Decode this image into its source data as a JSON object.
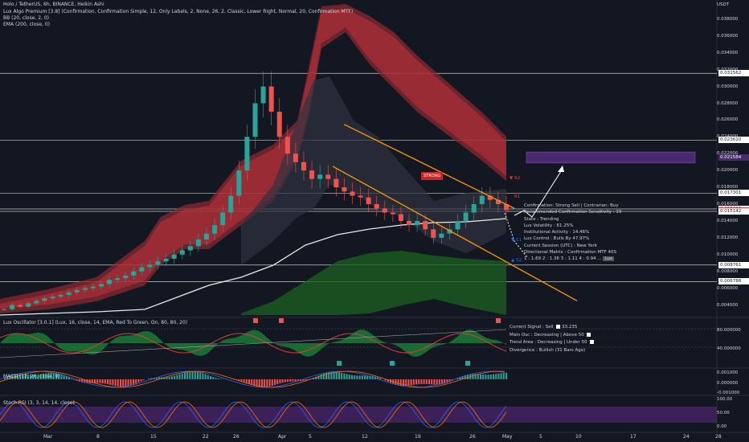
{
  "header": {
    "title": "Holo / TetherUS, 6h, BINANCE, Heikin Ashi",
    "lines": [
      "Lux Algo Premium [3.8] (Confirmation, Confirmation Simple, 12, Only Labels, 2, None, 26, 2, Classic, Lower Right, Normal, 20, Confirmation MTF)",
      "BB (20, close, 2, 0)",
      "EMA (200, close, 0)"
    ],
    "currency": "USDT"
  },
  "price_axis": [
    "0.038000",
    "0.036000",
    "0.034000",
    "0.032000",
    "0.030000",
    "0.028000",
    "0.026000",
    "0.024000",
    "0.022000",
    "0.020000",
    "0.018000",
    "0.016000",
    "0.014000",
    "0.012000",
    "0.010000",
    "0.008000",
    "0.006000",
    "0.004000"
  ],
  "price_highlights": [
    {
      "label": "0.031562",
      "bg": "#ffffff",
      "fg": "#131722"
    },
    {
      "label": "0.023610",
      "bg": "#ffffff",
      "fg": "#131722"
    },
    {
      "label": "0.021584",
      "bg": "#4a2a6e",
      "fg": "#ffffff"
    },
    {
      "label": "0.017301",
      "bg": "#ffffff",
      "fg": "#131722"
    },
    {
      "label": "0.015426",
      "bg": "#ffffff",
      "fg": "#131722"
    },
    {
      "label": "0.015275",
      "bg": "#f23645",
      "fg": "#ffffff"
    },
    {
      "label": "0.015142",
      "bg": "#ffffff",
      "fg": "#131722"
    },
    {
      "label": "0.008761",
      "bg": "#ffffff",
      "fg": "#131722"
    },
    {
      "label": "0.006788",
      "bg": "#ffffff",
      "fg": "#131722"
    }
  ],
  "time_axis": [
    "Mar",
    "8",
    "15",
    "22",
    "26",
    "Apr",
    "5",
    "12",
    "19",
    "26",
    "May",
    "5",
    "10",
    "17",
    "24",
    "28"
  ],
  "chart_labels": {
    "strong": "STRONG",
    "r2": "▼ R2",
    "r1": "R1",
    "s1": "▼ S1",
    "s2": "▲ S2"
  },
  "dashboard": {
    "lines": [
      "Confirmation: Strong Sell  |  Contrarian: Buy",
      "Recommended Confirmation Sensitivity : 19",
      "State : Trending",
      "Lux Volatility : 61.25%",
      "Institutional Activity : 14.46%",
      "Lux Control : Bulls By 47.97%",
      "Current Session (UTC) : New York",
      "Directional Matrix : Confirmation MTF",
      "1 : 1.69  2 : 1.36  3 : 1.11  4 : 0.94  ..."
    ],
    "tag": "Lux",
    "matrix_value": "40S"
  },
  "oscillator": {
    "legend": "Lux Oscillator [3.0.1] (Lux, 16, close, 14, EMA, Red To Green, On, 80, 80, 20)",
    "axis": [
      "80.000000",
      "40.000000"
    ],
    "table": [
      "Current Signal : Sell",
      "Main Osc : Decreasing   |   Above 50",
      "Trend Area : Decreasing   |   Under 50",
      "Divergence : Bullish  (31 Bars Ago)"
    ],
    "signal_value": "33.235"
  },
  "macd": {
    "legend": "MACD (12, 26, close, 9)",
    "axis": [
      "0.001000",
      "0.000000",
      "-0.001000"
    ]
  },
  "stoch": {
    "legend": "Stoch RSI (3, 3, 14, 14, close)",
    "axis": [
      "100.00",
      "50.00",
      "0.00"
    ]
  },
  "chart_data": {
    "type": "candlestick",
    "title": "Holo / TetherUS, 6h, BINANCE, Heikin Ashi",
    "ylim": [
      0.003,
      0.04
    ],
    "price_series_close": [
      0.0035,
      0.004,
      0.0038,
      0.0042,
      0.0045,
      0.0048,
      0.005,
      0.0052,
      0.0055,
      0.0058,
      0.006,
      0.0062,
      0.0065,
      0.007,
      0.0072,
      0.0075,
      0.008,
      0.0085,
      0.0088,
      0.0092,
      0.0095,
      0.01,
      0.0105,
      0.011,
      0.0118,
      0.0125,
      0.0135,
      0.015,
      0.017,
      0.02,
      0.024,
      0.028,
      0.03,
      0.027,
      0.024,
      0.022,
      0.021,
      0.02,
      0.019,
      0.0195,
      0.019,
      0.018,
      0.0175,
      0.017,
      0.0168,
      0.016,
      0.0155,
      0.015,
      0.0148,
      0.014,
      0.0135,
      0.014,
      0.013,
      0.012,
      0.0125,
      0.013,
      0.014,
      0.015,
      0.016,
      0.017,
      0.0165,
      0.016,
      0.0153
    ],
    "horizontal_levels": [
      0.031562,
      0.02361,
      0.021584,
      0.017301,
      0.015426,
      0.015142,
      0.008761,
      0.006788
    ],
    "last_price": 0.015275,
    "channel": {
      "upper": [
        [
          0.0255,
          "Apr 7"
        ],
        [
          0.0155,
          "May 1"
        ]
      ],
      "lower": [
        [
          0.0205,
          "Apr 5"
        ],
        [
          0.0045,
          "May 5"
        ]
      ]
    }
  }
}
